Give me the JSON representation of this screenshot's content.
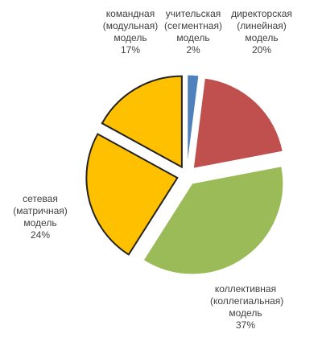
{
  "chart_data": {
    "type": "pie",
    "categories": [
      "учительская (сегментная) модель",
      "директорская (линейная) модель",
      "коллективная (коллегиальная) модель",
      "сетевая (матричная) модель",
      "командная (модульная) модель"
    ],
    "values": [
      2,
      20,
      37,
      24,
      17
    ],
    "value_labels": [
      "2%",
      "20%",
      "37%",
      "24%",
      "17%"
    ],
    "colors": [
      "#4f81bd",
      "#c0504d",
      "#9bbb59",
      "#ffc000",
      "#ffc000"
    ],
    "outlines": [
      null,
      null,
      null,
      "#222222",
      "#222222"
    ]
  }
}
